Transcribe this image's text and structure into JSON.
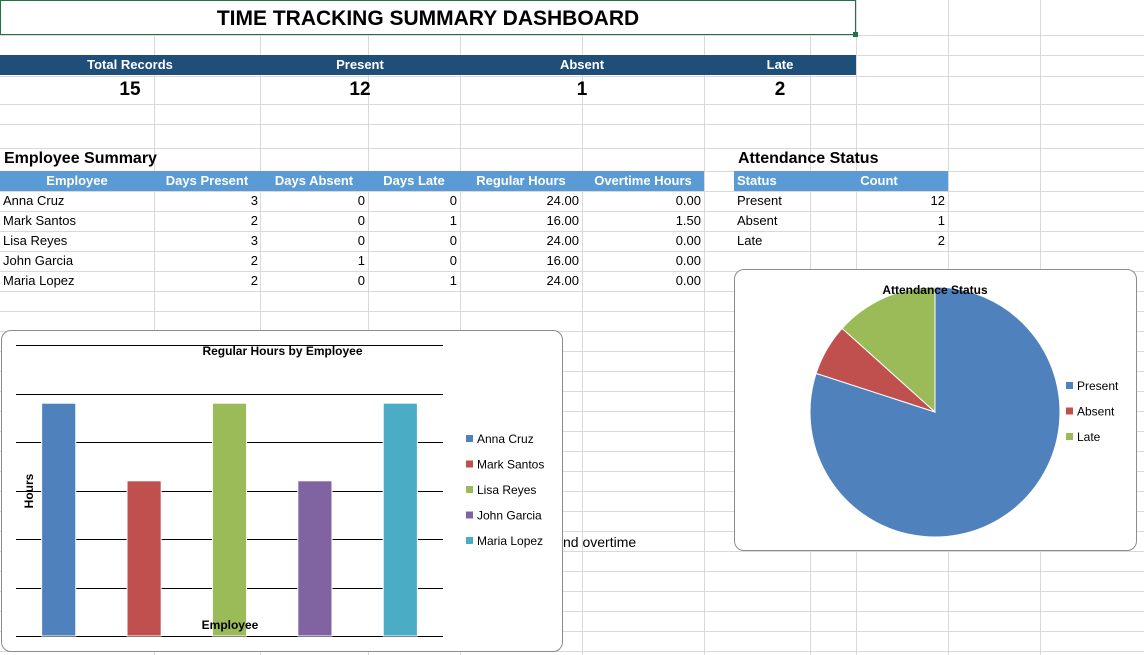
{
  "title": "TIME TRACKING SUMMARY DASHBOARD",
  "kpis": [
    {
      "label": "Total Records",
      "value": "15"
    },
    {
      "label": "Present",
      "value": "12"
    },
    {
      "label": "Absent",
      "value": "1"
    },
    {
      "label": "Late",
      "value": "2"
    }
  ],
  "employee_summary": {
    "title": "Employee Summary",
    "headers": [
      "Employee",
      "Days Present",
      "Days Absent",
      "Days Late",
      "Regular Hours",
      "Overtime Hours"
    ],
    "rows": [
      [
        "Anna Cruz",
        "3",
        "0",
        "0",
        "24.00",
        "0.00"
      ],
      [
        "Mark Santos",
        "2",
        "0",
        "1",
        "16.00",
        "1.50"
      ],
      [
        "Lisa Reyes",
        "3",
        "0",
        "0",
        "24.00",
        "0.00"
      ],
      [
        "John Garcia",
        "2",
        "1",
        "0",
        "16.00",
        "0.00"
      ],
      [
        "Maria Lopez",
        "2",
        "0",
        "1",
        "24.00",
        "0.00"
      ]
    ]
  },
  "attendance_status": {
    "title": "Attendance Status",
    "headers": [
      "Status",
      "Count"
    ],
    "rows": [
      [
        "Present",
        "12"
      ],
      [
        "Absent",
        "1"
      ],
      [
        "Late",
        "2"
      ]
    ]
  },
  "partial_cell_text": "nd overtime",
  "colors": {
    "title_border": "#217346",
    "kpi_header": "#1f4e78",
    "table_header": "#5b9bd5",
    "gridline": "#d9d9d9"
  },
  "chart_data": [
    {
      "type": "bar",
      "title": "Regular Hours by Employee",
      "xlabel": "Employee",
      "ylabel": "Hours",
      "categories": [
        "Anna Cruz",
        "Mark Santos",
        "Lisa Reyes",
        "John Garcia",
        "Maria Lopez"
      ],
      "values": [
        24,
        16,
        24,
        16,
        24
      ],
      "colors": [
        "#4f81bd",
        "#c0504d",
        "#9bbb59",
        "#8064a2",
        "#4bacc6"
      ],
      "ylim": [
        0,
        30
      ],
      "grid": true,
      "legend": "right"
    },
    {
      "type": "pie",
      "title": "Attendance Status",
      "categories": [
        "Present",
        "Absent",
        "Late"
      ],
      "values": [
        12,
        1,
        2
      ],
      "colors": [
        "#4f81bd",
        "#c0504d",
        "#9bbb59"
      ],
      "legend": "right"
    }
  ]
}
